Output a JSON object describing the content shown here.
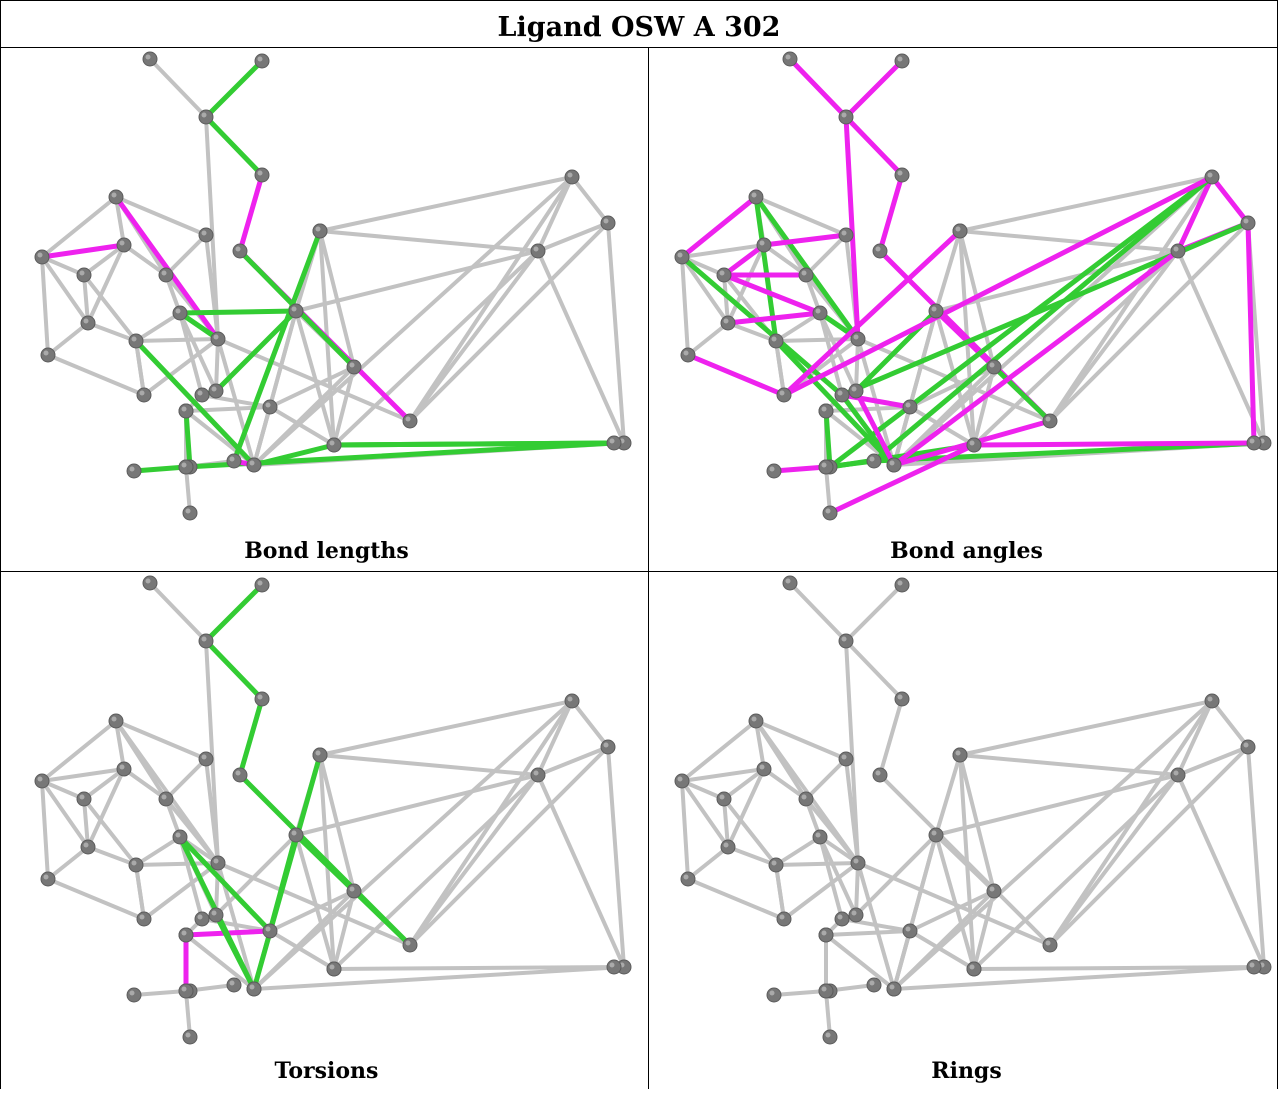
{
  "title": "Ligand OSW A 302",
  "panels": [
    {
      "caption": "Bond lengths",
      "highlights": {
        "green": [
          [
            3,
            2
          ],
          [
            2,
            4
          ],
          [
            0,
            22
          ],
          [
            22,
            6
          ],
          [
            6,
            10
          ],
          [
            10,
            31
          ],
          [
            5,
            7
          ],
          [
            9,
            24
          ],
          [
            9,
            29
          ],
          [
            29,
            14
          ],
          [
            30,
            39
          ],
          [
            40,
            35
          ],
          [
            32,
            38
          ],
          [
            33,
            35
          ],
          [
            34,
            37
          ]
        ],
        "magenta": [
          [
            4,
            5
          ],
          [
            5,
            8
          ],
          [
            9,
            34
          ],
          [
            0,
            16
          ],
          [
            15,
            19
          ],
          [
            14,
            35
          ],
          [
            29,
            40
          ]
        ]
      }
    },
    {
      "caption": "Bond angles",
      "highlights": {
        "green": [
          [
            0,
            16
          ],
          [
            16,
            24
          ],
          [
            6,
            10
          ],
          [
            0,
            22
          ],
          [
            7,
            8
          ],
          [
            9,
            24
          ],
          [
            30,
            40
          ],
          [
            12,
            31
          ],
          [
            15,
            31
          ],
          [
            14,
            34
          ],
          [
            25,
            30
          ],
          [
            11,
            34
          ],
          [
            11,
            30
          ],
          [
            31,
            36
          ],
          [
            33,
            34
          ]
        ],
        "magenta": [
          [
            1,
            2
          ],
          [
            3,
            2
          ],
          [
            0,
            2
          ],
          [
            2,
            4
          ],
          [
            4,
            5
          ],
          [
            5,
            8
          ],
          [
            6,
            7
          ],
          [
            10,
            9
          ],
          [
            21,
            20
          ],
          [
            9,
            13
          ],
          [
            8,
            9
          ],
          [
            22,
            23
          ],
          [
            26,
            27
          ],
          [
            27,
            11
          ],
          [
            11,
            12
          ],
          [
            11,
            13
          ],
          [
            12,
            13
          ],
          [
            15,
            16
          ],
          [
            27,
            17
          ],
          [
            28,
            31
          ],
          [
            19,
            20
          ],
          [
            18,
            19
          ],
          [
            20,
            22
          ],
          [
            29,
            35
          ],
          [
            32,
            33
          ],
          [
            12,
            35
          ],
          [
            40,
            41
          ]
        ]
      }
    },
    {
      "caption": "Torsions",
      "highlights": {
        "green": [
          [
            3,
            2
          ],
          [
            2,
            4
          ],
          [
            4,
            5
          ],
          [
            5,
            8
          ],
          [
            9,
            10
          ],
          [
            9,
            22
          ],
          [
            22,
            28
          ],
          [
            28,
            6
          ],
          [
            6,
            7
          ],
          [
            7,
            8
          ],
          [
            17,
            9
          ]
        ],
        "magenta": [
          [
            25,
            28
          ],
          [
            25,
            38
          ]
        ]
      }
    },
    {
      "caption": "Rings",
      "highlights": {
        "green": [],
        "magenta": []
      }
    }
  ]
}
